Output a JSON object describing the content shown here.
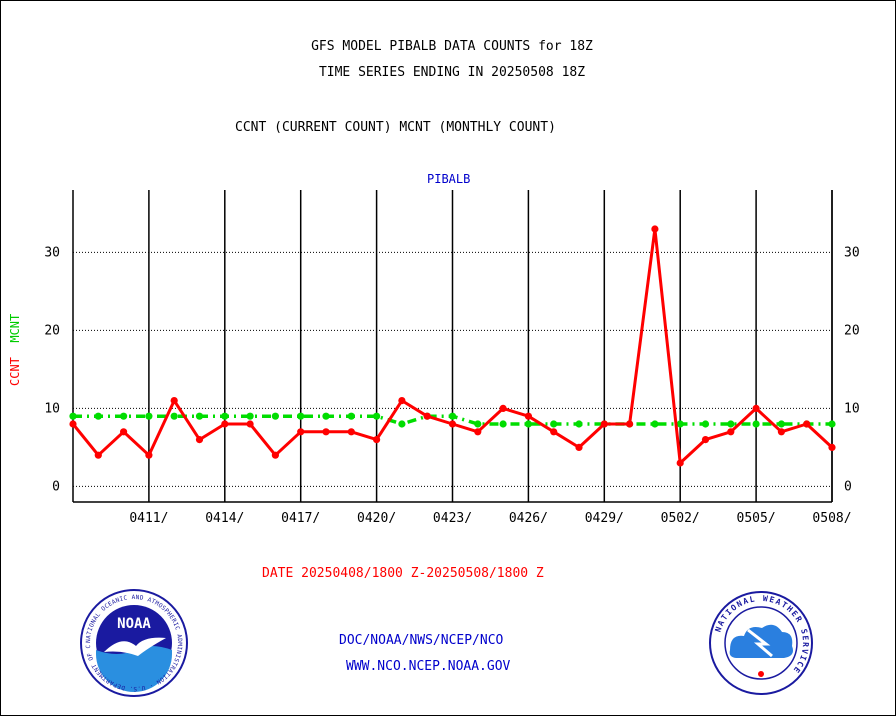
{
  "header": {
    "title_line1": "GFS MODEL PIBALB DATA COUNTS for 18Z",
    "title_line2": "TIME SERIES ENDING IN 20250508 18Z",
    "subtitle": "CCNT (CURRENT COUNT) MCNT (MONTHLY COUNT)"
  },
  "footer": {
    "date_range": "DATE 20250408/1800 Z-20250508/1800 Z",
    "credit_line1": "DOC/NOAA/NWS/NCEP/NCO",
    "credit_line2": "WWW.NCO.NCEP.NOAA.GOV"
  },
  "logos": {
    "left": "noaa-logo",
    "right": "nws-logo",
    "left_text": "NOAA",
    "left_ring_text": "NATIONAL OCEANIC AND ATMOSPHERIC ADMINISTRATION · U.S. DEPARTMENT OF COMMERCE",
    "right_ring_text": "NATIONAL WEATHER SERVICE"
  },
  "colors": {
    "ccnt": "#ff0000",
    "mcnt": "#00dd00",
    "series_label": "#0000cc",
    "grid": "#000000"
  },
  "chart_data": {
    "type": "line",
    "title": "PIBALB",
    "ylabel_ccnt": "CCNT",
    "ylabel_mcnt": "MCNT",
    "xlabel": "",
    "ylim": [
      -2,
      38
    ],
    "yticks": [
      0,
      10,
      20,
      30
    ],
    "xlim": [
      "04/08",
      "05/08"
    ],
    "x_tick_labels": [
      "0411/",
      "0414/",
      "0417/",
      "0420/",
      "0423/",
      "0426/",
      "0429/",
      "0502/",
      "0505/",
      "0508/"
    ],
    "grid": true,
    "series": [
      {
        "name": "CCNT",
        "style": "solid",
        "x": [
          "04/08",
          "04/09",
          "04/10",
          "04/11",
          "04/12",
          "04/13",
          "04/14",
          "04/15",
          "04/16",
          "04/17",
          "04/18",
          "04/19",
          "04/20",
          "04/21",
          "04/22",
          "04/23",
          "04/24",
          "04/25",
          "04/26",
          "04/27",
          "04/28",
          "04/29",
          "04/30",
          "05/01",
          "05/02",
          "05/03",
          "05/04",
          "05/05",
          "05/06",
          "05/07",
          "05/08"
        ],
        "values": [
          8,
          4,
          7,
          4,
          11,
          6,
          8,
          8,
          4,
          7,
          7,
          7,
          6,
          11,
          9,
          8,
          7,
          10,
          9,
          7,
          5,
          8,
          8,
          33,
          3,
          6,
          7,
          10,
          7,
          8,
          5
        ]
      },
      {
        "name": "MCNT",
        "style": "dash-dot",
        "x": [
          "04/08",
          "04/09",
          "04/10",
          "04/11",
          "04/12",
          "04/13",
          "04/14",
          "04/15",
          "04/16",
          "04/17",
          "04/18",
          "04/19",
          "04/20",
          "04/21",
          "04/22",
          "04/23",
          "04/24",
          "04/25",
          "04/26",
          "04/27",
          "04/28",
          "04/29",
          "04/30",
          "05/01",
          "05/02",
          "05/03",
          "05/04",
          "05/05",
          "05/06",
          "05/07",
          "05/08"
        ],
        "values": [
          9,
          9,
          9,
          9,
          9,
          9,
          9,
          9,
          9,
          9,
          9,
          9,
          9,
          8,
          9,
          9,
          8,
          8,
          8,
          8,
          8,
          8,
          8,
          8,
          8,
          8,
          8,
          8,
          8,
          8,
          8
        ]
      }
    ]
  }
}
